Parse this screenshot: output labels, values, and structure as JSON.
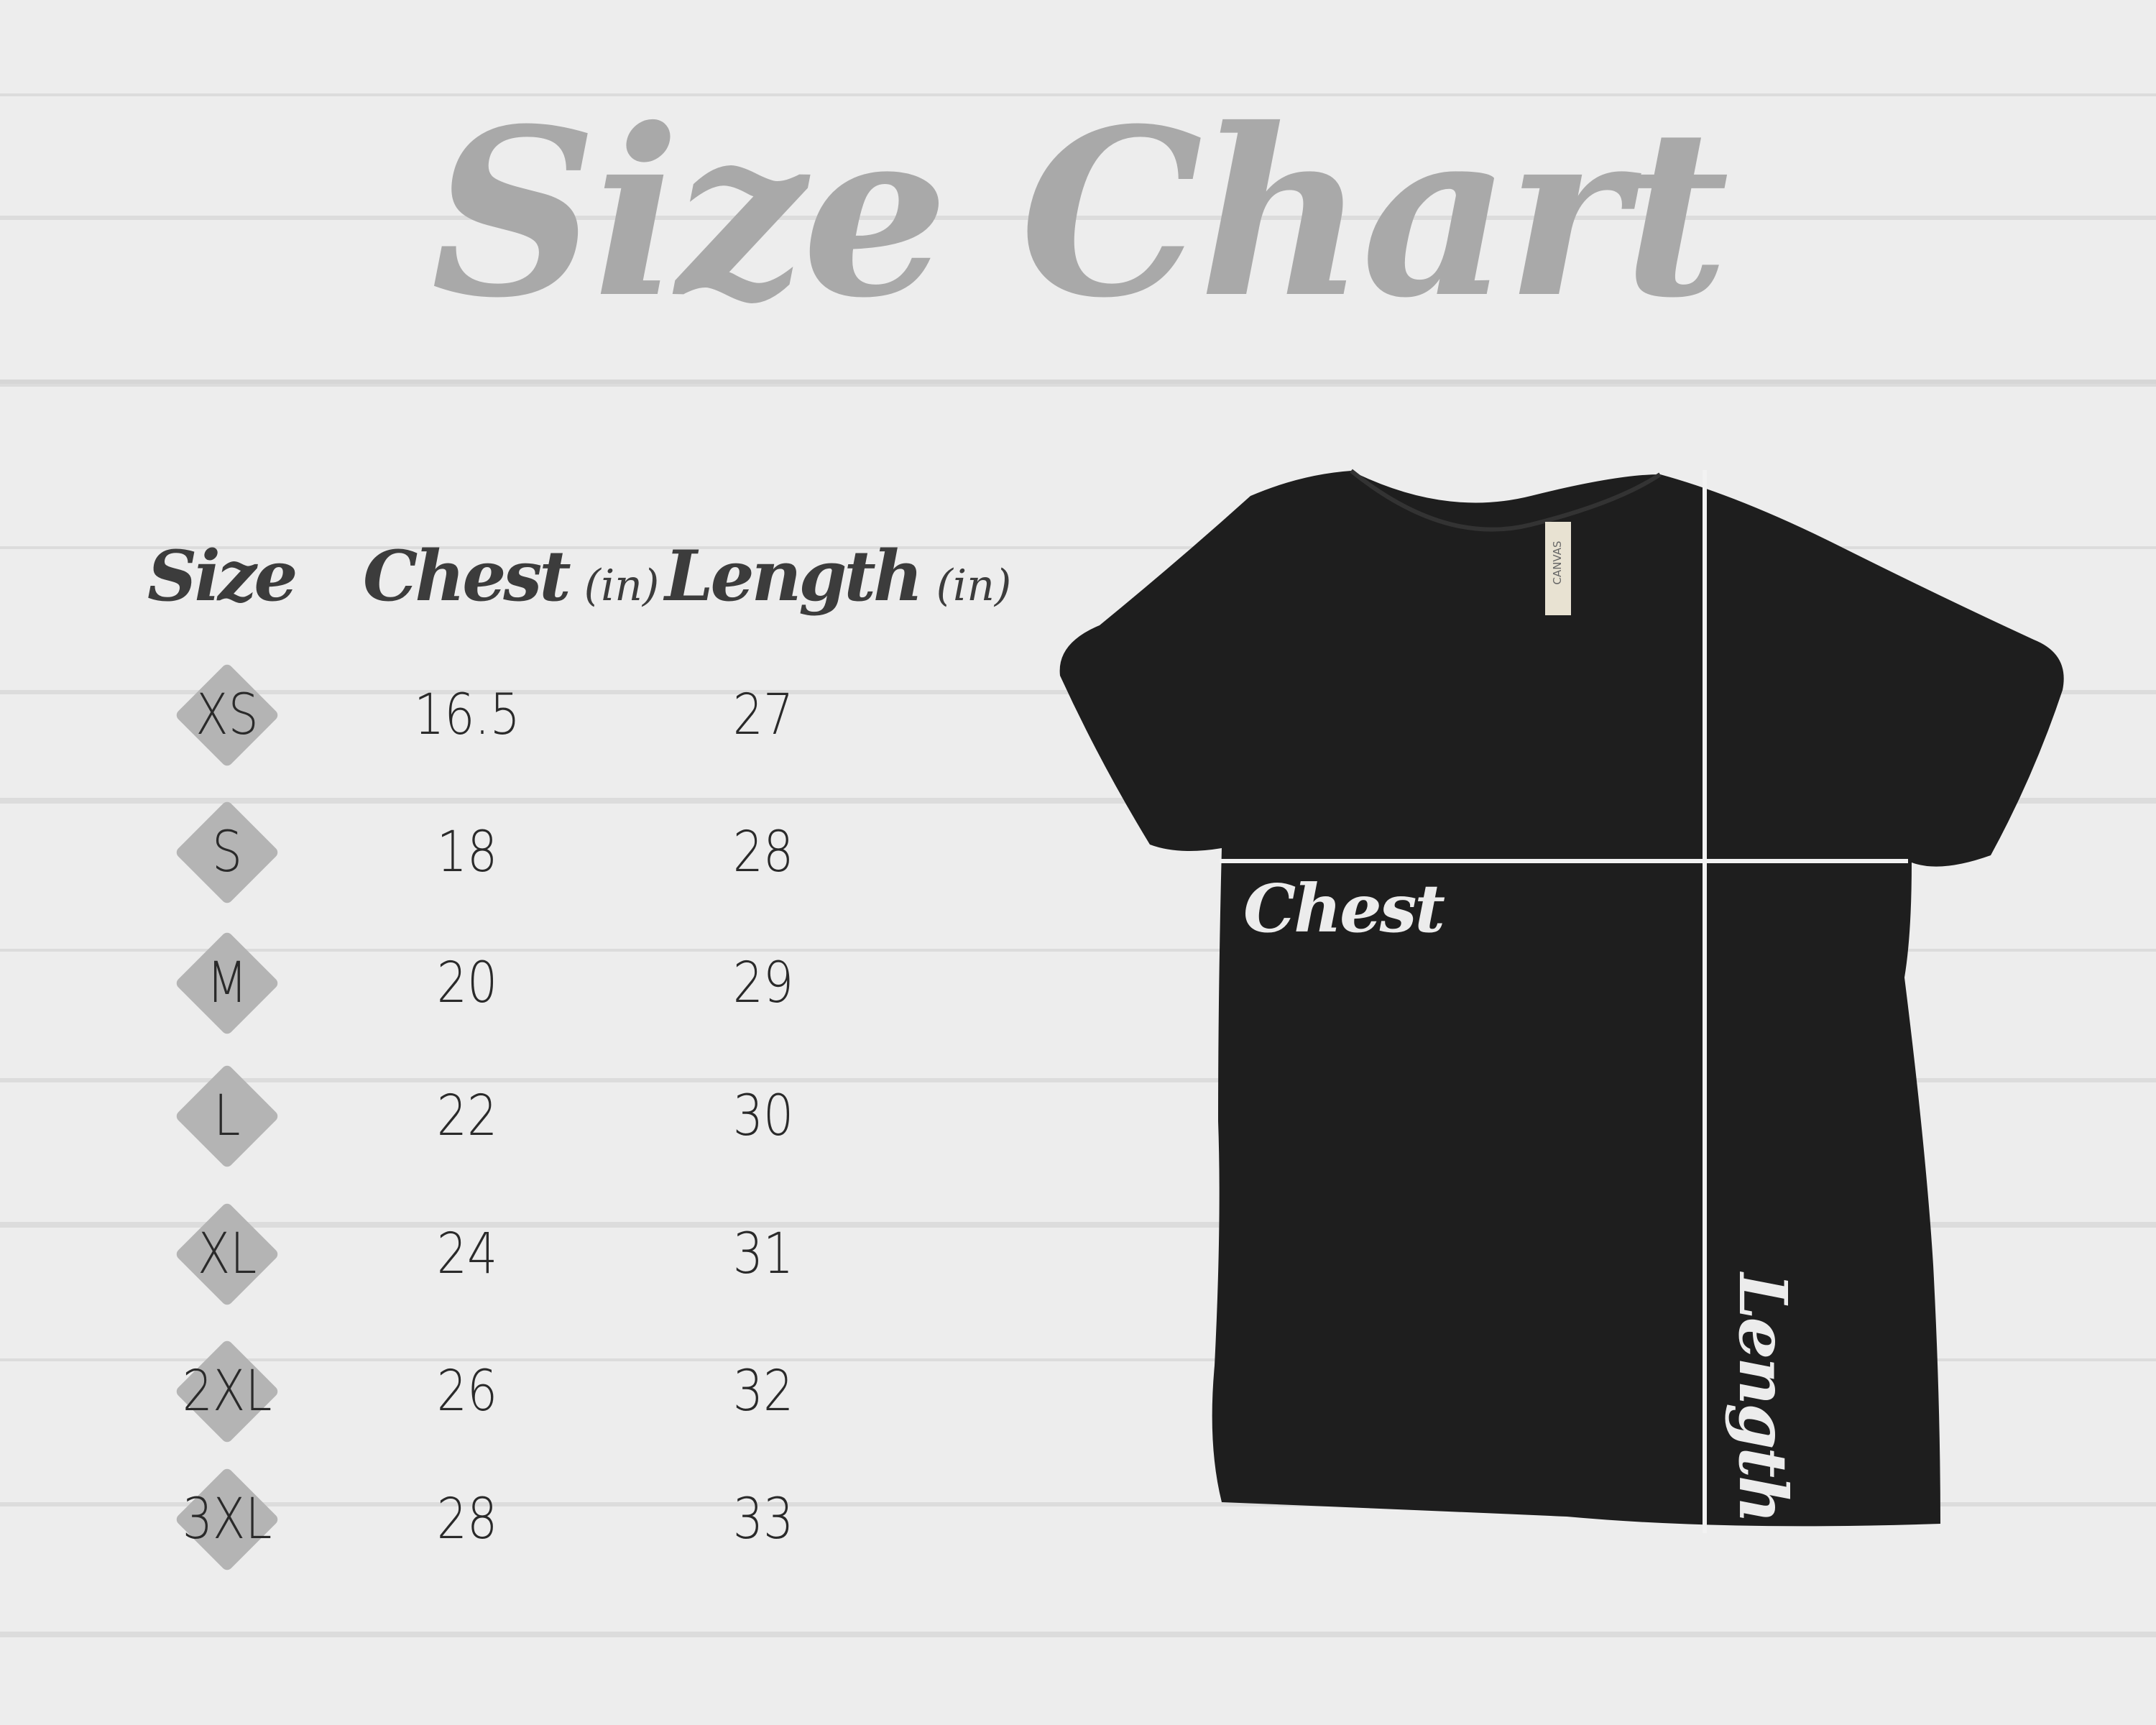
{
  "title": "Size Chart",
  "headers": {
    "size": "Size",
    "chest": "Chest",
    "chest_unit": "(in)",
    "length": "Length",
    "length_unit": "(in)"
  },
  "rows": [
    {
      "size": "XS",
      "chest": "16.5",
      "length": "27"
    },
    {
      "size": "S",
      "chest": "18",
      "length": "28"
    },
    {
      "size": "M",
      "chest": "20",
      "length": "29"
    },
    {
      "size": "L",
      "chest": "22",
      "length": "30"
    },
    {
      "size": "XL",
      "chest": "24",
      "length": "31"
    },
    {
      "size": "2XL",
      "chest": "26",
      "length": "32"
    },
    {
      "size": "3XL",
      "chest": "28",
      "length": "33"
    }
  ],
  "shirt": {
    "tag_text": "CANVAS",
    "chest_label": "Chest",
    "length_label": "Length",
    "color": "#1e1e1e"
  },
  "colors": {
    "title": "#a9a9a9",
    "header": "#3c3c3c",
    "diamond": "#b4b4b4",
    "background": "#ececec"
  }
}
